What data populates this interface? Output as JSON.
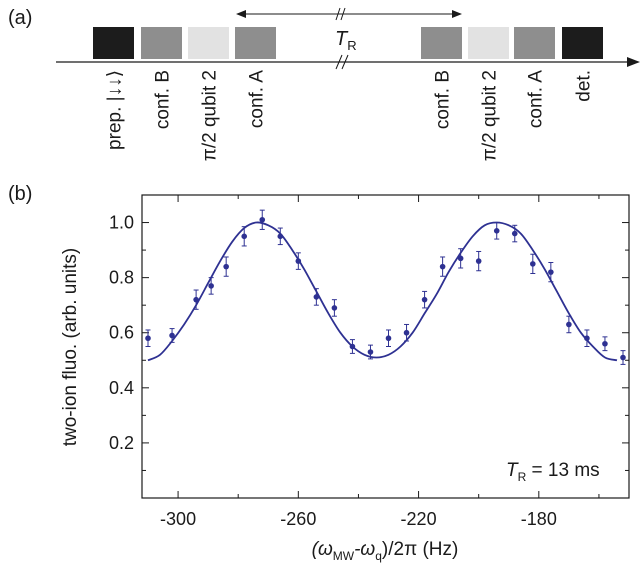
{
  "panel_a": {
    "label": "(a)",
    "interval_label": "T",
    "interval_sub": "R",
    "pulses": [
      {
        "label": "prep. |↓↓⟩",
        "fill": "#1c1c1c"
      },
      {
        "label": "conf. B",
        "fill": "#8e8e8e"
      },
      {
        "label": "π/2 qubit 2",
        "fill": "#e2e2e2"
      },
      {
        "label": "conf. A",
        "fill": "#8e8e8e"
      },
      {
        "label": "conf. B",
        "fill": "#8e8e8e"
      },
      {
        "label": "π/2 qubit 2",
        "fill": "#e2e2e2"
      },
      {
        "label": "conf. A",
        "fill": "#8e8e8e"
      },
      {
        "label": "det.",
        "fill": "#1c1c1c"
      }
    ]
  },
  "panel_b": {
    "label": "(b)"
  },
  "chart_data": {
    "type": "scatter",
    "ylabel": "two-ion fluo. (arb. units)",
    "xlabel_parts": [
      "(ω",
      "MW",
      "-ω",
      "q",
      ")/2π (Hz)"
    ],
    "annotation": {
      "main": "T",
      "sub": "R",
      "rest": " = 13 ms"
    },
    "xlim": [
      -312,
      -150
    ],
    "ylim": [
      0.0,
      1.1
    ],
    "x_ticks": [
      -300,
      -260,
      -220,
      -180
    ],
    "y_ticks": [
      0.2,
      0.4,
      0.6,
      0.8,
      1.0
    ],
    "x_tick_labels": [
      "-300",
      "-260",
      "-220",
      "-180"
    ],
    "y_tick_labels": [
      "0.2",
      "0.4",
      "0.6",
      "0.8",
      "1.0"
    ],
    "marker_color": "#2e3192",
    "series": [
      {
        "kind": "points",
        "x": [
          -310,
          -302,
          -294,
          -289,
          -284,
          -278,
          -272,
          -266,
          -260,
          -254,
          -248,
          -242,
          -236,
          -230,
          -224,
          -218,
          -212,
          -206,
          -200,
          -194,
          -188,
          -182,
          -176,
          -170,
          -164,
          -158,
          -152
        ],
        "y": [
          0.58,
          0.59,
          0.72,
          0.77,
          0.84,
          0.95,
          1.01,
          0.95,
          0.86,
          0.73,
          0.69,
          0.55,
          0.53,
          0.58,
          0.6,
          0.72,
          0.84,
          0.87,
          0.86,
          0.97,
          0.96,
          0.85,
          0.82,
          0.63,
          0.58,
          0.56,
          0.51
        ],
        "err": [
          0.03,
          0.025,
          0.035,
          0.03,
          0.035,
          0.035,
          0.035,
          0.03,
          0.03,
          0.03,
          0.03,
          0.025,
          0.025,
          0.03,
          0.03,
          0.03,
          0.035,
          0.035,
          0.035,
          0.03,
          0.03,
          0.035,
          0.035,
          0.03,
          0.03,
          0.025,
          0.025
        ]
      },
      {
        "kind": "fit",
        "x": [
          -310,
          -306,
          -302,
          -298,
          -294,
          -290,
          -286,
          -282,
          -278,
          -274,
          -270,
          -266,
          -262,
          -258,
          -254,
          -250,
          -246,
          -242,
          -238,
          -234,
          -230,
          -226,
          -222,
          -218,
          -214,
          -210,
          -206,
          -202,
          -198,
          -194,
          -190,
          -186,
          -182,
          -178,
          -174,
          -170,
          -166,
          -162,
          -158,
          -154
        ],
        "y": [
          0.5,
          0.52,
          0.57,
          0.63,
          0.7,
          0.78,
          0.86,
          0.93,
          0.98,
          1.0,
          0.99,
          0.96,
          0.9,
          0.83,
          0.75,
          0.67,
          0.6,
          0.55,
          0.52,
          0.51,
          0.52,
          0.55,
          0.6,
          0.67,
          0.74,
          0.82,
          0.89,
          0.95,
          0.99,
          1.0,
          0.99,
          0.96,
          0.9,
          0.83,
          0.75,
          0.67,
          0.6,
          0.55,
          0.51,
          0.5
        ]
      }
    ]
  }
}
